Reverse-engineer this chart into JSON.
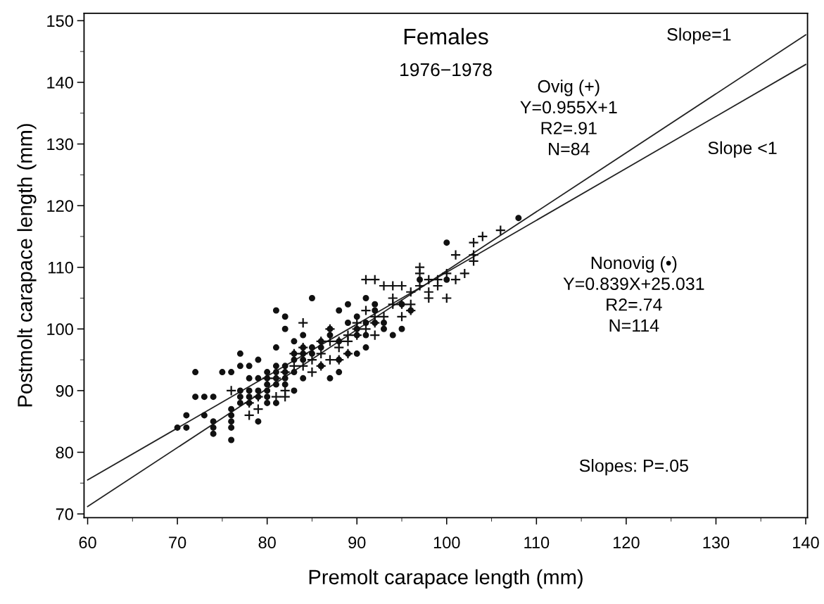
{
  "chart_data": {
    "type": "scatter",
    "title": "Females",
    "subtitle": "1976−1978",
    "xlabel": "Premolt carapace length (mm)",
    "ylabel": "Postmolt carapace length (mm)",
    "xlim": [
      59.6,
      140.2
    ],
    "ylim": [
      69.4,
      151.2
    ],
    "xticks": [
      60,
      70,
      80,
      90,
      100,
      110,
      120,
      130,
      140
    ],
    "yticks": [
      70,
      80,
      90,
      100,
      110,
      120,
      130,
      140,
      150
    ],
    "grid": false,
    "legend": false,
    "series": [
      {
        "marker": "circle",
        "color": "#111111",
        "x": [
          70,
          71,
          71,
          72,
          72,
          73,
          73,
          74,
          74,
          74,
          74,
          75,
          76,
          76,
          76,
          76,
          76,
          76,
          77,
          77,
          77,
          77,
          77,
          78,
          78,
          78,
          78,
          79,
          79,
          79,
          79,
          79,
          80,
          80,
          80,
          80,
          80,
          81,
          81,
          81,
          81,
          81,
          81,
          81,
          82,
          82,
          82,
          82,
          82,
          82,
          83,
          83,
          83,
          83,
          84,
          84,
          84,
          84,
          85,
          85,
          85,
          86,
          86,
          86,
          87,
          87,
          87,
          88,
          88,
          88,
          89,
          89,
          89,
          90,
          90,
          90,
          91,
          91,
          91,
          92,
          92,
          93,
          94,
          95,
          95,
          97,
          100,
          108,
          100,
          96,
          84,
          83,
          86,
          88,
          93,
          90,
          91,
          92,
          78,
          80
        ],
        "values": [
          84,
          84,
          86,
          93,
          89,
          89,
          86,
          89,
          85,
          84,
          83,
          93,
          93,
          87,
          86,
          85,
          84,
          82,
          96,
          94,
          90,
          89,
          88,
          94,
          90,
          89,
          88,
          95,
          92,
          90,
          89,
          85,
          93,
          92,
          91,
          90,
          88,
          103,
          97,
          94,
          93,
          92,
          91,
          88,
          102,
          100,
          94,
          93,
          92,
          91,
          98,
          96,
          95,
          93,
          99,
          97,
          96,
          95,
          105,
          97,
          96,
          98,
          97,
          94,
          100,
          99,
          92,
          103,
          98,
          93,
          104,
          101,
          96,
          102,
          100,
          96,
          105,
          97,
          101,
          104,
          103,
          100,
          99,
          104,
          100,
          108,
          114,
          118,
          108,
          103,
          92,
          90,
          94,
          95,
          101,
          99,
          99,
          101,
          92,
          89
        ]
      },
      {
        "marker": "cross",
        "color": "#111111",
        "x": [
          76,
          78,
          78,
          79,
          79,
          81,
          82,
          82,
          83,
          83,
          84,
          84,
          84,
          85,
          85,
          86,
          86,
          87,
          87,
          87,
          88,
          88,
          89,
          89,
          89,
          90,
          90,
          91,
          91,
          91,
          92,
          92,
          92,
          93,
          93,
          94,
          94,
          95,
          95,
          95,
          96,
          96,
          97,
          97,
          97,
          98,
          98,
          98,
          99,
          99,
          100,
          100,
          101,
          101,
          102,
          103,
          103,
          103,
          104,
          106,
          80,
          81,
          82,
          84,
          86,
          88,
          90,
          92,
          94,
          96
        ],
        "values": [
          90,
          86,
          88,
          87,
          89,
          89,
          90,
          89,
          96,
          94,
          101,
          97,
          94,
          95,
          93,
          96,
          94,
          100,
          98,
          95,
          97,
          95,
          99,
          96,
          98,
          101,
          99,
          108,
          103,
          100,
          108,
          101,
          99,
          107,
          102,
          107,
          105,
          107,
          102,
          104,
          104,
          106,
          110,
          109,
          107,
          108,
          106,
          105,
          108,
          107,
          109,
          105,
          108,
          112,
          109,
          114,
          112,
          111,
          115,
          116,
          92,
          92,
          93,
          96,
          98,
          98,
          100,
          102,
          104,
          103
        ]
      },
      {
        "type": "line",
        "color": "#222222",
        "x": [
          60,
          140
        ],
        "values": [
          71.2,
          147.7
        ]
      },
      {
        "type": "line",
        "color": "#222222",
        "x": [
          60,
          140
        ],
        "values": [
          75.5,
          142.9
        ]
      }
    ],
    "annotations": [
      "Ovig (+)\nY=0.955X+1\nR2=.91\nN=84",
      "Nonovig (•)\nY=0.839X+25.031\nR2=.74\nN=114",
      "Slopes: P=.05",
      "Slope=1",
      "Slope <1"
    ]
  }
}
